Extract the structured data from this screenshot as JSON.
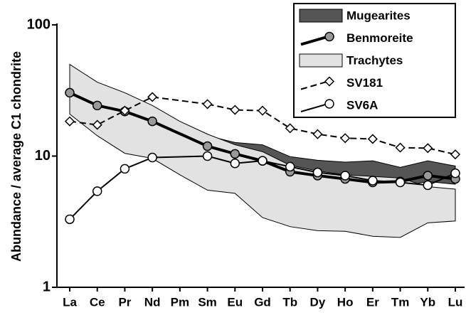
{
  "chart_data": {
    "type": "line",
    "y_label": "Abundance / average C1 chondrite",
    "categories": [
      "La",
      "Ce",
      "Pr",
      "Nd",
      "Pm",
      "Sm",
      "Eu",
      "Gd",
      "Tb",
      "Dy",
      "Ho",
      "Er",
      "Tm",
      "Yb",
      "Lu"
    ],
    "ylim": [
      1,
      100
    ],
    "yticks": [
      1,
      10,
      100
    ],
    "log_y": true,
    "grid": false,
    "legend": "upper right",
    "series": [
      {
        "name": "Mugearites",
        "kind": "band",
        "color": "#555555",
        "upper": [
          38.1,
          31.1,
          26.8,
          22.2,
          18,
          14.3,
          12.7,
          12.2,
          9.9,
          9.3,
          9.0,
          9.2,
          8.2,
          9.2,
          8.4
        ],
        "lower": [
          24.3,
          19.6,
          17.9,
          17.6,
          14.3,
          11.5,
          9.6,
          8.5,
          7.0,
          6.6,
          6.1,
          5.85,
          5.85,
          6.4,
          6.1
        ]
      },
      {
        "name": "Benmoreite",
        "kind": "line",
        "color": "#000000",
        "marker": "circle",
        "marker_color": "#999999",
        "dash": "solid",
        "values": [
          30.4,
          24.3,
          21.9,
          18.4,
          null,
          11.9,
          10.4,
          9.2,
          7.6,
          7.1,
          6.7,
          6.3,
          6.4,
          7.1,
          6.7
        ]
      },
      {
        "name": "Trachytes",
        "kind": "band",
        "color": "#e2e2e2",
        "upper": [
          50,
          36.6,
          30.4,
          24.3,
          18.4,
          14.7,
          12.2,
          10.8,
          8.5,
          7.7,
          7.2,
          7.0,
          6.8,
          5.85,
          5.6
        ],
        "lower": [
          20.9,
          14.3,
          10.5,
          9.6,
          7.2,
          5.5,
          5.2,
          3.4,
          2.9,
          2.7,
          2.67,
          2.45,
          2.4,
          3.1,
          3.2
        ]
      },
      {
        "name": "SV181",
        "kind": "line",
        "color": "#000000",
        "marker": "diamond",
        "marker_color": "#ffffff",
        "dash": "dashed",
        "values": [
          18.4,
          17.3,
          22.2,
          28.2,
          null,
          24.9,
          22.5,
          22.2,
          16.3,
          14.7,
          13.7,
          13.5,
          11.6,
          11.5,
          10.3
        ]
      },
      {
        "name": "SV6A",
        "kind": "line",
        "color": "#000000",
        "marker": "circle",
        "marker_color": "#ffffff",
        "dash": "solid",
        "values": [
          3.3,
          5.4,
          8.0,
          9.75,
          null,
          10.0,
          8.8,
          9.2,
          8.3,
          7.5,
          7.1,
          6.5,
          6.3,
          6.0,
          7.4
        ]
      }
    ]
  }
}
